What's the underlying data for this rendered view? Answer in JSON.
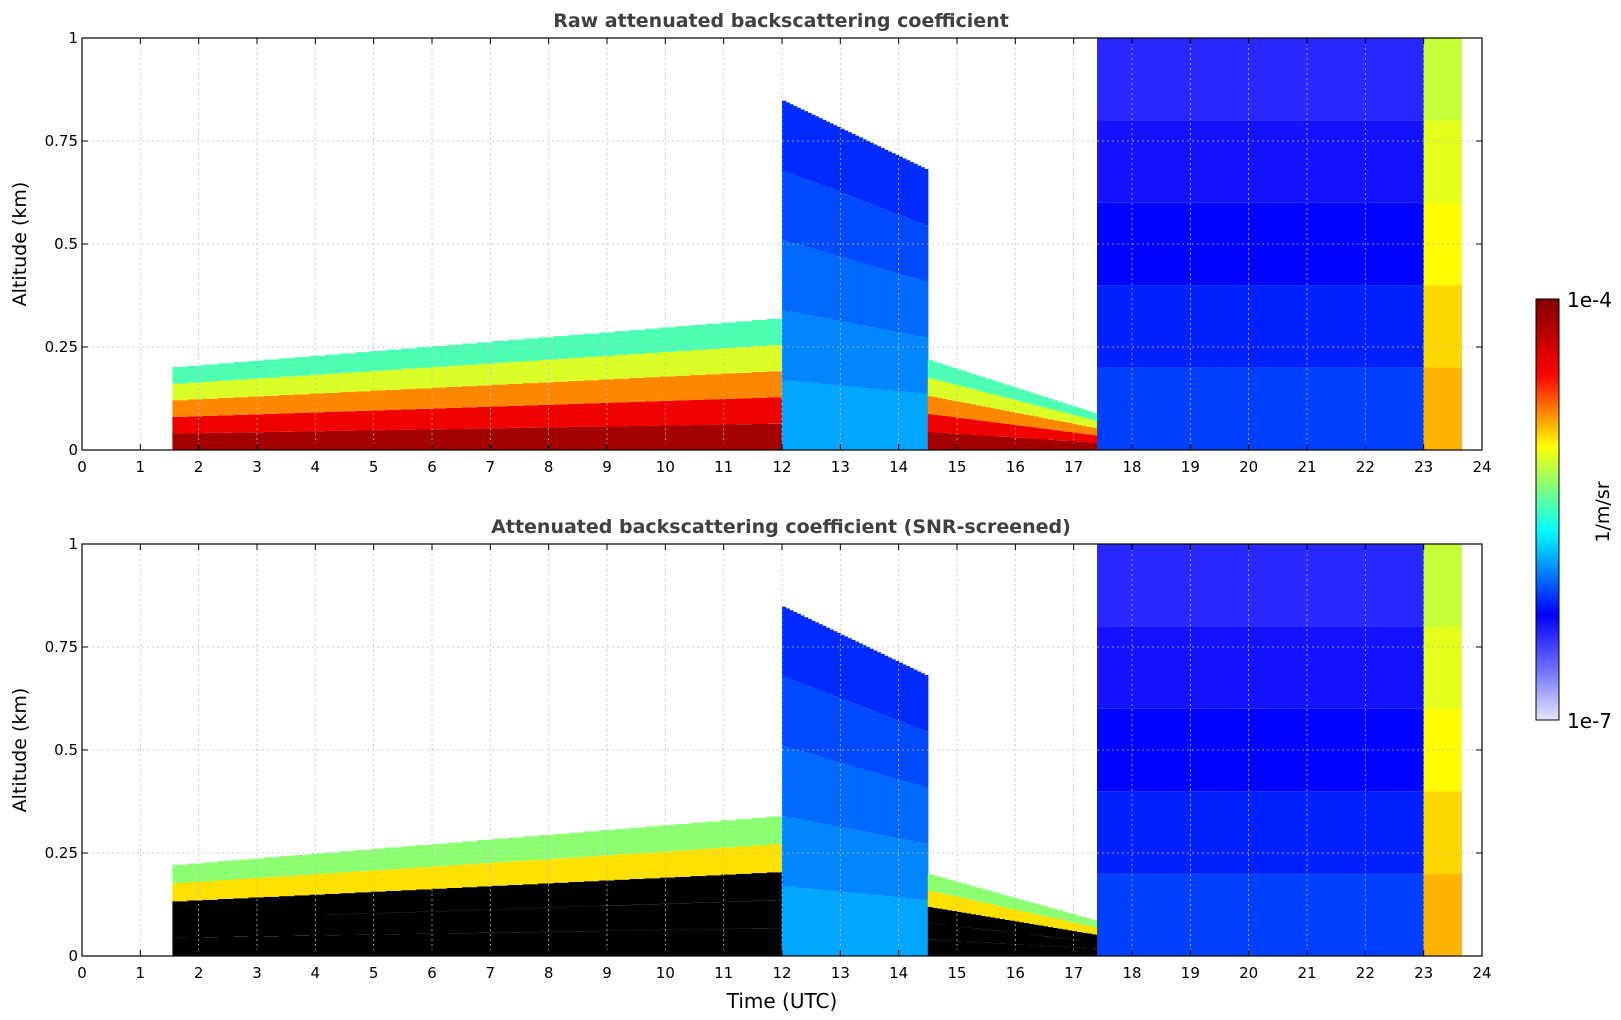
{
  "chart_data": [
    {
      "type": "heatmap",
      "title": "Raw attenuated backscattering coefficient",
      "xlabel": "",
      "ylabel": "Altitude (km)",
      "xlim": [
        0,
        24
      ],
      "ylim": [
        0,
        1
      ],
      "xticks": [
        0,
        1,
        2,
        3,
        4,
        5,
        6,
        7,
        8,
        9,
        10,
        11,
        12,
        13,
        14,
        15,
        16,
        17,
        18,
        19,
        20,
        21,
        22,
        23,
        24
      ],
      "xtick_labels": [
        "0",
        "1",
        "2",
        "3",
        "4",
        "5",
        "6",
        "7",
        "8",
        "9",
        "10",
        "11",
        "12",
        "13",
        "14",
        "15",
        "16",
        "17",
        "18",
        "19",
        "20",
        "21",
        "22",
        "23",
        "24"
      ],
      "yticks": [
        0,
        0.25,
        0.5,
        0.75,
        1
      ],
      "ytick_labels": [
        "0",
        "0.25",
        "0.5",
        "0.75",
        "1"
      ],
      "grid": true,
      "data_time_range_utc": [
        1.55,
        23.65
      ],
      "layers": [
        {
          "t0": 1.55,
          "t1": 12.0,
          "top_start": 0.2,
          "top_end": 0.32,
          "level": 0.95
        },
        {
          "t0": 12.0,
          "t1": 14.5,
          "top_start": 0.85,
          "top_end": 0.68,
          "level": 0.38
        },
        {
          "t0": 14.5,
          "t1": 17.8,
          "top_start": 0.22,
          "top_end": 0.07,
          "level": 0.95
        },
        {
          "t0": 17.4,
          "t1": 23.0,
          "top_start": 1.0,
          "top_end": 1.0,
          "level": 0.3
        },
        {
          "t0": 23.0,
          "t1": 23.65,
          "top_start": 1.0,
          "top_end": 1.0,
          "level": 0.7
        }
      ]
    },
    {
      "type": "heatmap",
      "title": "Attenuated backscattering coefficient (SNR-screened)",
      "xlabel": "Time (UTC)",
      "ylabel": "Altitude (km)",
      "xlim": [
        0,
        24
      ],
      "ylim": [
        0,
        1
      ],
      "xticks": [
        0,
        1,
        2,
        3,
        4,
        5,
        6,
        7,
        8,
        9,
        10,
        11,
        12,
        13,
        14,
        15,
        16,
        17,
        18,
        19,
        20,
        21,
        22,
        23,
        24
      ],
      "xtick_labels": [
        "0",
        "1",
        "2",
        "3",
        "4",
        "5",
        "6",
        "7",
        "8",
        "9",
        "10",
        "11",
        "12",
        "13",
        "14",
        "15",
        "16",
        "17",
        "18",
        "19",
        "20",
        "21",
        "22",
        "23",
        "24"
      ],
      "yticks": [
        0,
        0.25,
        0.5,
        0.75,
        1
      ],
      "ytick_labels": [
        "0",
        "0.25",
        "0.5",
        "0.75",
        "1"
      ],
      "grid": true,
      "data_time_range_utc": [
        1.55,
        23.65
      ],
      "layers": [
        {
          "t0": 1.55,
          "t1": 12.0,
          "top_start": 0.22,
          "top_end": 0.34,
          "level": 1.0
        },
        {
          "t0": 12.0,
          "t1": 14.5,
          "top_start": 0.85,
          "top_end": 0.68,
          "level": 0.38
        },
        {
          "t0": 14.5,
          "t1": 17.8,
          "top_start": 0.2,
          "top_end": 0.07,
          "level": 1.0
        },
        {
          "t0": 17.4,
          "t1": 23.0,
          "top_start": 1.0,
          "top_end": 1.0,
          "level": 0.3
        },
        {
          "t0": 23.0,
          "t1": 23.65,
          "top_start": 1.0,
          "top_end": 1.0,
          "level": 0.7
        }
      ]
    }
  ],
  "colorbar": {
    "label": "1/m/sr",
    "max_label": "1e-4",
    "min_label": "1e-7",
    "range": [
      1e-07,
      0.0001
    ],
    "scale": "log",
    "colormap": [
      "#e6e6fa",
      "#0000ff",
      "#00ffff",
      "#ffff00",
      "#ff0000",
      "#800000"
    ]
  }
}
